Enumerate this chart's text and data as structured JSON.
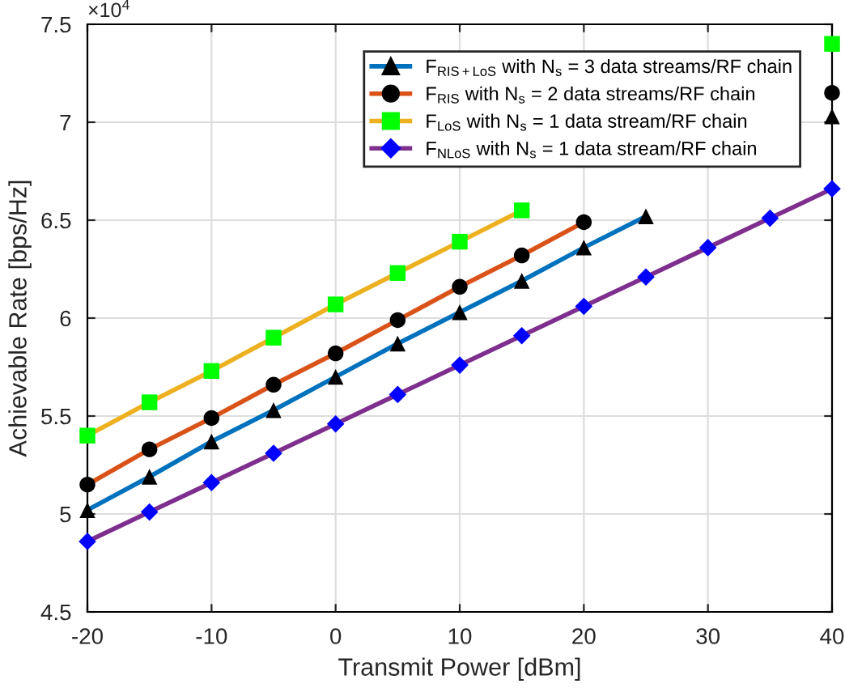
{
  "chart_data": {
    "type": "line",
    "xlabel": "Transmit Power [dBm]",
    "ylabel": "Achievable Rate [bps/Hz]",
    "annotations": [
      "×10$^{4}$"
    ],
    "x": [
      -20,
      -15,
      -10,
      -5,
      0,
      5,
      10,
      15,
      20,
      25,
      30,
      35,
      40
    ],
    "xlim": [
      -20,
      40
    ],
    "xticks": [
      -20,
      -10,
      0,
      10,
      20,
      30,
      40
    ],
    "ylim": [
      4.5,
      7.5
    ],
    "yticks": [
      4.5,
      5,
      5.5,
      6,
      6.5,
      7,
      7.5
    ],
    "grid": true,
    "legend": "top right",
    "line_style": "solid",
    "series": [
      {
        "name": "F$_{RIS+LoS}$ with N$_{s}$ = 3 data streams/RF chain",
        "color": "#0072bd",
        "marker": "triangle",
        "colors": [
          "#000000",
          "#000000",
          "#000000",
          "#000000",
          "#000000",
          "#000000",
          "#000000",
          "#000000",
          "#000000",
          "#000000",
          "#000000",
          "#000000",
          "#000000"
        ],
        "values": [
          5.02,
          5.19,
          5.37,
          5.53,
          5.7,
          5.87,
          6.03,
          6.19,
          6.36,
          6.52,
          null,
          null,
          7.03
        ]
      },
      {
        "name": "F$_{RIS}$ with N$_{s}$ = 2 data streams/RF chain",
        "color": "#d95319",
        "marker": "circle",
        "colors": [
          "#000000",
          "#000000",
          "#000000",
          "#000000",
          "#000000",
          "#000000",
          "#000000",
          "#000000",
          "#000000",
          "#000000",
          "#000000",
          "#000000",
          "#000000"
        ],
        "values": [
          5.15,
          5.33,
          5.49,
          5.66,
          5.82,
          5.99,
          6.16,
          6.32,
          6.49,
          null,
          null,
          null,
          7.15
        ]
      },
      {
        "name": "F$_{LoS}$ with N$_{s}$ = 1 data stream/RF chain",
        "color": "#edb120",
        "marker": "square",
        "colors": [
          "#00ff00",
          "#00ff00",
          "#00ff00",
          "#00ff00",
          "#00ff00",
          "#00ff00",
          "#00ff00",
          "#00ff00",
          "#00ff00",
          "#00ff00",
          "#00ff00",
          "#00ff00",
          "#00ff00"
        ],
        "values": [
          5.4,
          5.57,
          5.73,
          5.9,
          6.07,
          6.23,
          6.39,
          6.55,
          null,
          null,
          null,
          null,
          7.4
        ]
      },
      {
        "name": "F$_{NLoS}$ with N$_{s}$ = 1 data stream/RF chain",
        "color": "#7e2f8e",
        "marker": "diamond",
        "colors": [
          "#0000ff",
          "#0000ff",
          "#0000ff",
          "#0000ff",
          "#0000ff",
          "#0000ff",
          "#0000ff",
          "#0000ff",
          "#0000ff",
          "#0000ff",
          "#0000ff",
          "#0000ff",
          "#0000ff"
        ],
        "values": [
          4.86,
          5.01,
          5.16,
          5.31,
          5.46,
          5.61,
          5.76,
          5.91,
          6.06,
          6.21,
          6.36,
          6.51,
          6.66
        ]
      }
    ]
  }
}
